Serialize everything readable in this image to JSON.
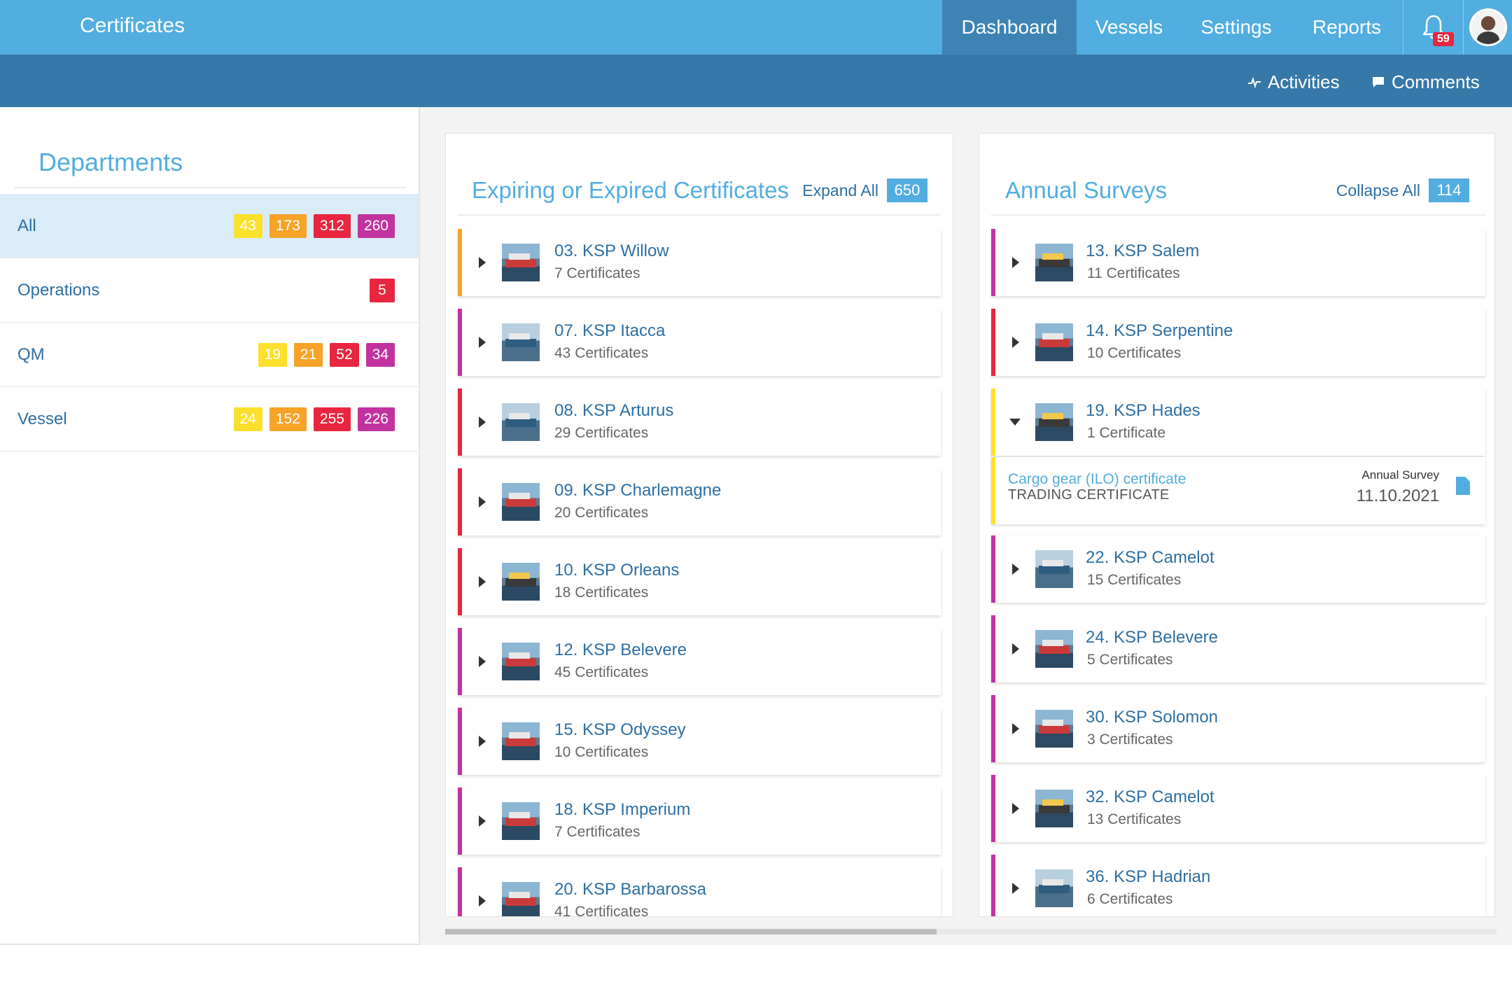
{
  "app": {
    "title": "Certificates"
  },
  "nav": {
    "tabs": [
      {
        "label": "Dashboard",
        "active": true
      },
      {
        "label": "Vessels"
      },
      {
        "label": "Settings"
      },
      {
        "label": "Reports"
      }
    ],
    "notifications": {
      "icon": "bell-icon",
      "count": "59"
    },
    "avatar": {
      "icon": "user-avatar"
    }
  },
  "subbar": {
    "activities": {
      "label": "Activities",
      "icon": "activity-pulse-icon"
    },
    "comments": {
      "label": "Comments",
      "icon": "comment-icon"
    }
  },
  "departments": {
    "title": "Departments",
    "items": [
      {
        "name": "All",
        "active": true,
        "badges": [
          "43",
          "173",
          "312",
          "260"
        ]
      },
      {
        "name": "Operations",
        "badges": [
          "5"
        ]
      },
      {
        "name": "QM",
        "badges": [
          "19",
          "21",
          "52",
          "34"
        ]
      },
      {
        "name": "Vessel",
        "badges": [
          "24",
          "152",
          "255",
          "226"
        ]
      }
    ]
  },
  "expiring": {
    "title": "Expiring or Expired Certificates",
    "action": "Expand All",
    "count": "650",
    "items": [
      {
        "name": "03. KSP Willow",
        "sub": "7 Certificates",
        "color": "#f6a328"
      },
      {
        "name": "07. KSP Itacca",
        "sub": "43 Certificates",
        "color": "#c2339f"
      },
      {
        "name": "08. KSP Arturus",
        "sub": "29 Certificates",
        "color": "#e8263f"
      },
      {
        "name": "09. KSP Charlemagne",
        "sub": "20 Certificates",
        "color": "#e8263f"
      },
      {
        "name": "10. KSP Orleans",
        "sub": "18 Certificates",
        "color": "#e8263f"
      },
      {
        "name": "12. KSP Belevere",
        "sub": "45 Certificates",
        "color": "#c2339f"
      },
      {
        "name": "15. KSP Odyssey",
        "sub": "10 Certificates",
        "color": "#c2339f"
      },
      {
        "name": "18. KSP Imperium",
        "sub": "7 Certificates",
        "color": "#c2339f"
      },
      {
        "name": "20. KSP Barbarossa",
        "sub": "41 Certificates",
        "color": "#c2339f"
      }
    ]
  },
  "surveys": {
    "title": "Annual Surveys",
    "action": "Collapse All",
    "count": "114",
    "items": [
      {
        "name": "13. KSP Salem",
        "sub": "11 Certificates",
        "color": "#c2339f"
      },
      {
        "name": "14. KSP Serpentine",
        "sub": "10 Certificates",
        "color": "#e8263f"
      },
      {
        "name": "19. KSP Hades",
        "sub": "1 Certificate",
        "color": "#fbe02c",
        "expanded": true
      },
      {
        "name": "22. KSP Camelot",
        "sub": "15 Certificates",
        "color": "#c2339f"
      },
      {
        "name": "24. KSP Belevere",
        "sub": "5 Certificates",
        "color": "#c2339f"
      },
      {
        "name": "30. KSP Solomon",
        "sub": "3 Certificates",
        "color": "#c2339f"
      },
      {
        "name": "32. KSP Camelot",
        "sub": "13 Certificates",
        "color": "#c2339f"
      },
      {
        "name": "36. KSP Hadrian",
        "sub": "6 Certificates",
        "color": "#c2339f"
      }
    ],
    "detail": {
      "link": "Cargo gear (ILO) certificate",
      "type": "TRADING CERTIFICATE",
      "label": "Annual Survey",
      "date": "11.10.2021",
      "icon": "document-icon"
    }
  }
}
